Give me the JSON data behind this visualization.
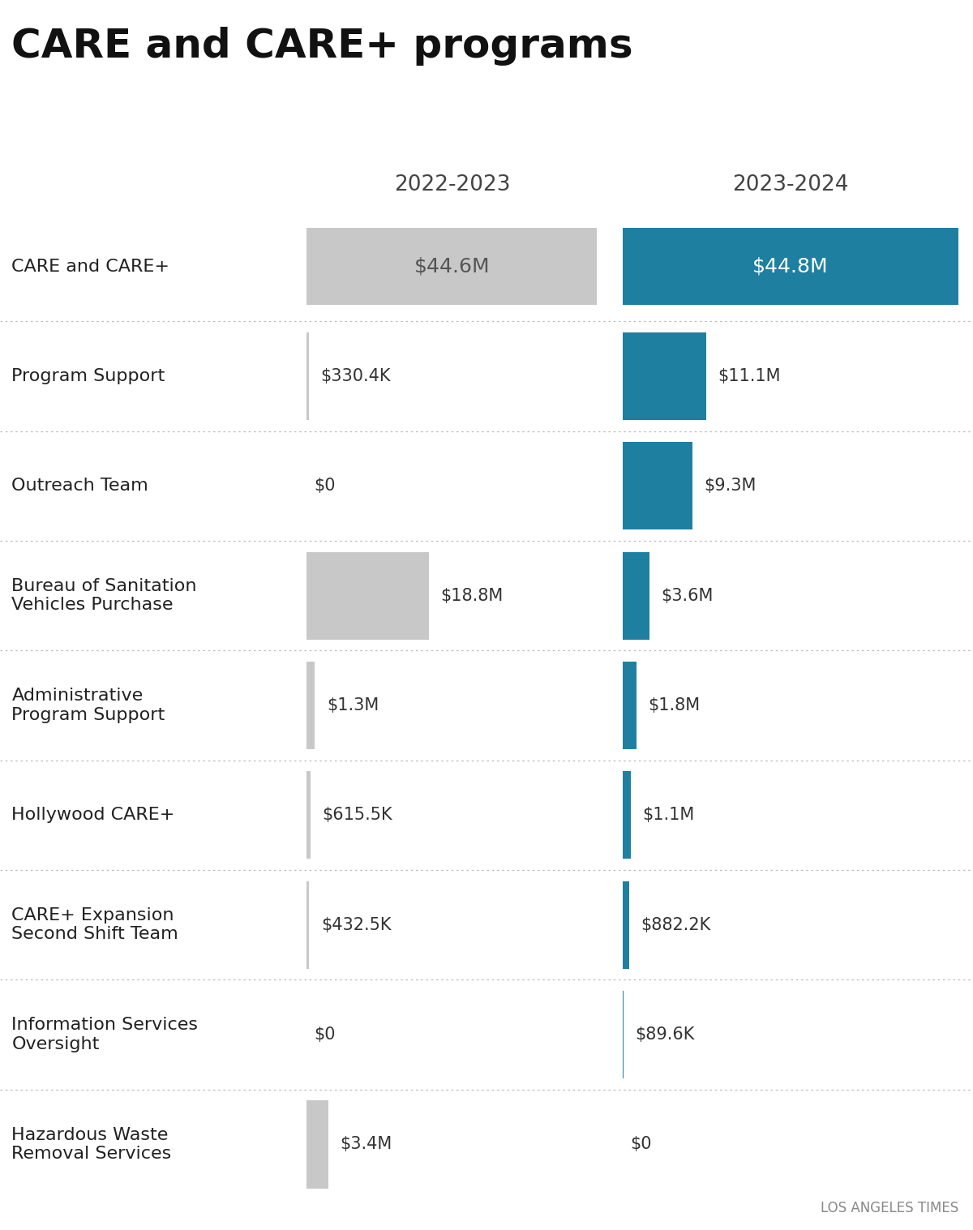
{
  "title": "CARE and CARE+ programs",
  "col_header_1": "2022-2023",
  "col_header_2": "2023-2024",
  "attribution": "LOS ANGELES TIMES",
  "color_2022": "#c8c8c8",
  "color_2023": "#1e7fa0",
  "background_color": "#ffffff",
  "max_value": 44800000,
  "categories": [
    "CARE and CARE+",
    "Program Support",
    "Outreach Team",
    "Bureau of Sanitation\nVehicles Purchase",
    "Administrative\nProgram Support",
    "Hollywood CARE+",
    "CARE+ Expansion\nSecond Shift Team",
    "Information Services\nOversight",
    "Hazardous Waste\nRemoval Services"
  ],
  "values_2022": [
    44600000,
    330400,
    0,
    18800000,
    1300000,
    615500,
    432500,
    0,
    3400000
  ],
  "values_2023": [
    44800000,
    11100000,
    9300000,
    3600000,
    1800000,
    1100000,
    882200,
    89600,
    0
  ],
  "labels_2022": [
    "$44.6M",
    "$330.4K",
    "$0",
    "$18.8M",
    "$1.3M",
    "$615.5K",
    "$432.5K",
    "$0",
    "$3.4M"
  ],
  "labels_2023": [
    "$44.8M",
    "$11.1M",
    "$9.3M",
    "$3.6M",
    "$1.8M",
    "$1.1M",
    "$882.2K",
    "$89.6K",
    "$0"
  ],
  "is_total": [
    true,
    false,
    false,
    false,
    false,
    false,
    false,
    false,
    false
  ]
}
